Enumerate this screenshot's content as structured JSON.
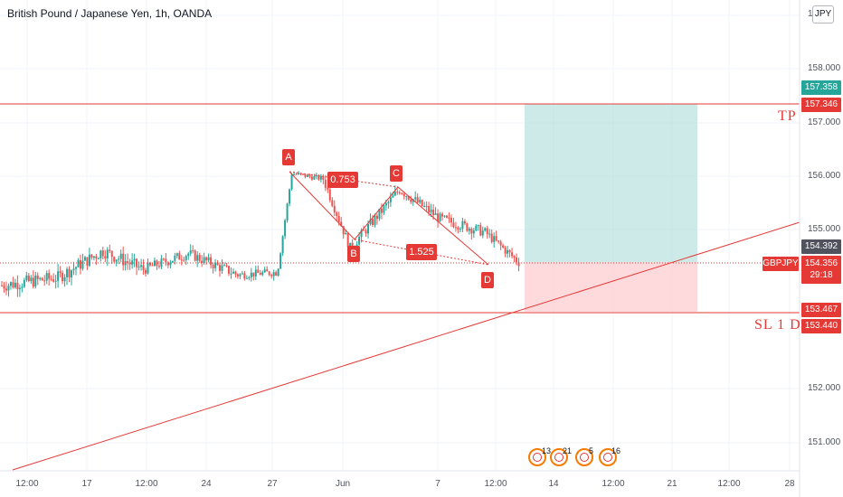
{
  "header": {
    "title": "British Pound / Japanese Yen, 1h, OANDA",
    "scale_label": "JPY"
  },
  "price_axis": {
    "ticks": [
      "158.000",
      "157.000",
      "156.000",
      "155.000",
      "152.000",
      "151.000"
    ],
    "partial_tick": "1"
  },
  "time_axis": {
    "ticks": [
      "12:00",
      "17",
      "12:00",
      "24",
      "27",
      "Jun",
      "7",
      "12:00",
      "14",
      "12:00",
      "21",
      "12:00",
      "28"
    ]
  },
  "price_tags": {
    "current": "157.358",
    "tp": "157.346",
    "entry_price": "154.392",
    "symbol": "GBPJPY",
    "last_price": "154.356",
    "countdown": "29:18",
    "sl_upper": "153.467",
    "sl_lower": "153.440"
  },
  "annotations": {
    "tp_label": "TP",
    "sl_label": "SL 1 D",
    "point_a": "A",
    "point_b": "B",
    "point_c": "C",
    "point_d": "D",
    "ratio_abc": "0.753",
    "ratio_bcd": "1.525"
  },
  "events": [
    {
      "label": "13"
    },
    {
      "label": "21"
    },
    {
      "label": "5"
    },
    {
      "label": "16"
    }
  ],
  "colors": {
    "bull": "#26a69a",
    "bear": "#ef5350",
    "level_line": "#e53935",
    "profit_zone": "#b2dfdb",
    "loss_zone": "#ffcdd2",
    "tag_green": "#26a69a",
    "tag_red": "#e53935"
  },
  "chart_data": {
    "type": "candlestick",
    "symbol": "GBPJPY",
    "timeframe": "1h",
    "levels": {
      "take_profit": 157.346,
      "stop_loss": 153.467,
      "entry": 154.392
    },
    "harmonic_pattern": {
      "points": {
        "A": 156.1,
        "B": 154.4,
        "C": 155.8,
        "D": 154.35
      },
      "ratios": {
        "AB_C": 0.753,
        "BC_D": 1.525
      }
    },
    "visible_price_range": [
      150.4,
      158.9
    ]
  }
}
